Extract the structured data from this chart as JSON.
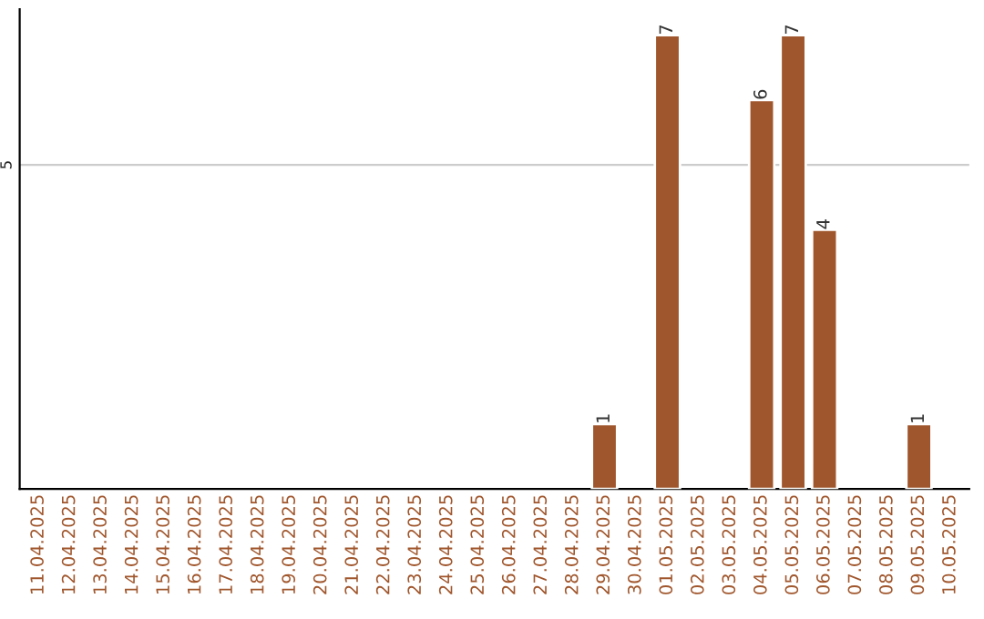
{
  "chart_data": {
    "type": "bar",
    "categories": [
      "11.04.2025",
      "12.04.2025",
      "13.04.2025",
      "14.04.2025",
      "15.04.2025",
      "16.04.2025",
      "17.04.2025",
      "18.04.2025",
      "19.04.2025",
      "20.04.2025",
      "21.04.2025",
      "22.04.2025",
      "23.04.2025",
      "24.04.2025",
      "25.04.2025",
      "26.04.2025",
      "27.04.2025",
      "28.04.2025",
      "29.04.2025",
      "30.04.2025",
      "01.05.2025",
      "02.05.2025",
      "03.05.2025",
      "04.05.2025",
      "05.05.2025",
      "06.05.2025",
      "07.05.2025",
      "08.05.2025",
      "09.05.2025",
      "10.05.2025"
    ],
    "values": [
      null,
      null,
      null,
      null,
      null,
      null,
      null,
      null,
      null,
      null,
      null,
      null,
      null,
      null,
      null,
      null,
      null,
      null,
      1,
      null,
      7,
      null,
      null,
      6,
      7,
      4,
      null,
      null,
      1,
      null
    ],
    "color": "#a0562c",
    "ylim": [
      0,
      7.4
    ],
    "yticks": [
      5
    ],
    "grid": "y",
    "data_labels": true,
    "legend": false
  }
}
